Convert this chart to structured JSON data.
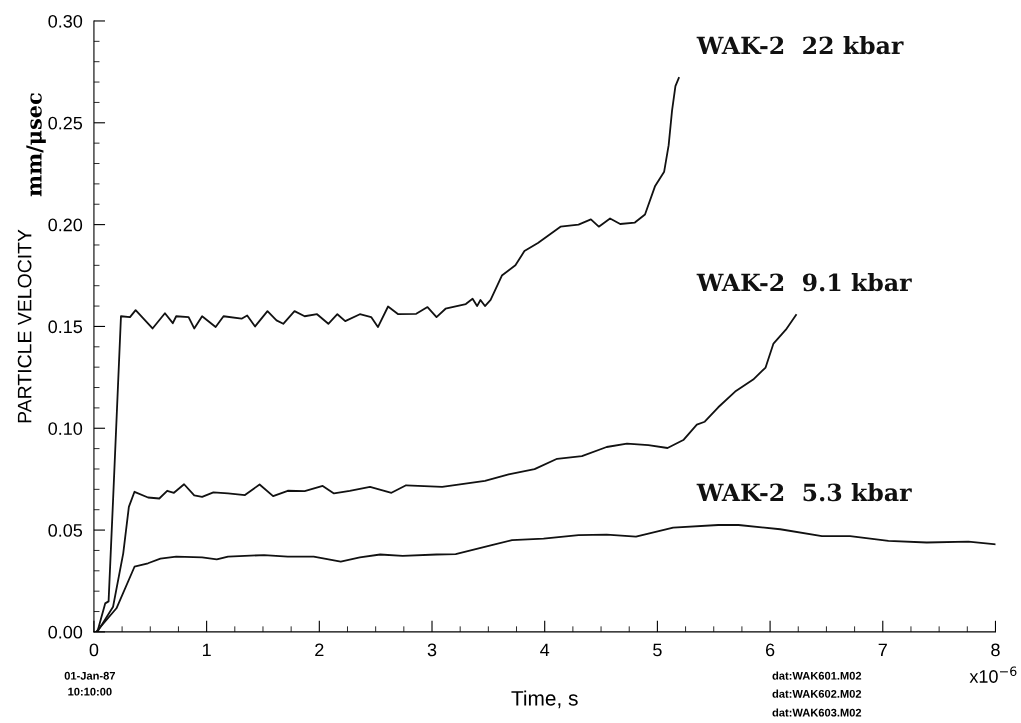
{
  "chart_data": {
    "type": "line",
    "xlabel": "Time, s",
    "ylabel": "PARTICLE VELOCITY",
    "xlim": [
      0,
      8
    ],
    "xticks": [
      0,
      1,
      2,
      3,
      4,
      5,
      6,
      7,
      8
    ],
    "ylim": [
      0,
      0.3
    ],
    "yticks": [
      {
        "value": 0,
        "label": "0.00"
      },
      {
        "value": 0.05,
        "label": "0.05"
      },
      {
        "value": 0.1,
        "label": "0.10"
      },
      {
        "value": 0.15,
        "label": "0.15"
      },
      {
        "value": 0.2,
        "label": "0.20"
      },
      {
        "value": 0.25,
        "label": "0.25"
      },
      {
        "value": 0.3,
        "label": "0.30"
      }
    ],
    "grid": false,
    "legend": false,
    "marker": "none",
    "line_style": "solid",
    "annotations": [
      "mm/μsec",
      "01-Jan-87",
      "10:10:00",
      "dat:WAK601.M02",
      "dat:WAK602.M02",
      "dat:WAK603.M02",
      "x10$^{−6}$"
    ],
    "series": [
      {
        "name": "WAK-2  22 kbar",
        "color": "#111111",
        "x": [
          0.03,
          0.1,
          0.13,
          0.17,
          0.24,
          0.32,
          0.37,
          0.52,
          0.63,
          0.7,
          0.73,
          0.84,
          0.89,
          0.96,
          1.08,
          1.15,
          1.31,
          1.36,
          1.43,
          1.54,
          1.62,
          1.68,
          1.78,
          1.87,
          1.98,
          2.08,
          2.16,
          2.23,
          2.36,
          2.46,
          2.52,
          2.61,
          2.7,
          2.86,
          2.96,
          3.04,
          3.12,
          3.3,
          3.36,
          3.4,
          3.43,
          3.47,
          3.52,
          3.62,
          3.74,
          3.82,
          3.94,
          4.14,
          4.3,
          4.41,
          4.48,
          4.58,
          4.67,
          4.8,
          4.89,
          4.98,
          5.06,
          5.1,
          5.13,
          5.16,
          5.19
        ],
        "values": [
          0.0,
          0.014,
          0.015,
          0.065,
          0.155,
          0.1546,
          0.158,
          0.149,
          0.1565,
          0.1516,
          0.155,
          0.1546,
          0.149,
          0.155,
          0.1497,
          0.155,
          0.1538,
          0.1554,
          0.15,
          0.1575,
          0.153,
          0.1513,
          0.1575,
          0.155,
          0.156,
          0.1513,
          0.156,
          0.1526,
          0.156,
          0.1546,
          0.1497,
          0.1598,
          0.156,
          0.1562,
          0.1595,
          0.1546,
          0.1587,
          0.161,
          0.1636,
          0.16,
          0.163,
          0.16,
          0.163,
          0.175,
          0.18,
          0.187,
          0.191,
          0.199,
          0.2,
          0.2026,
          0.199,
          0.203,
          0.2003,
          0.201,
          0.205,
          0.219,
          0.226,
          0.239,
          0.256,
          0.268,
          0.272
        ]
      },
      {
        "name": "WAK-2  9.1 kbar",
        "color": "#111111",
        "x": [
          0.03,
          0.17,
          0.26,
          0.31,
          0.36,
          0.48,
          0.58,
          0.65,
          0.71,
          0.8,
          0.89,
          0.96,
          1.06,
          1.19,
          1.34,
          1.47,
          1.59,
          1.72,
          1.87,
          2.03,
          2.13,
          2.27,
          2.45,
          2.64,
          2.77,
          3.09,
          3.47,
          3.68,
          3.91,
          4.11,
          4.33,
          4.55,
          4.73,
          4.92,
          5.09,
          5.23,
          5.35,
          5.42,
          5.54,
          5.69,
          5.85,
          5.96,
          6.03,
          6.14,
          6.23
        ],
        "values": [
          0.0,
          0.0124,
          0.0386,
          0.0614,
          0.0688,
          0.066,
          0.0655,
          0.0693,
          0.0683,
          0.0725,
          0.067,
          0.0663,
          0.0685,
          0.068,
          0.0672,
          0.0724,
          0.0667,
          0.0693,
          0.0691,
          0.0717,
          0.068,
          0.0693,
          0.0712,
          0.0683,
          0.072,
          0.0712,
          0.0742,
          0.0774,
          0.0799,
          0.085,
          0.0863,
          0.0908,
          0.0925,
          0.0917,
          0.0903,
          0.0942,
          0.1018,
          0.1032,
          0.1103,
          0.118,
          0.1239,
          0.1298,
          0.1416,
          0.1484,
          0.1556
        ]
      },
      {
        "name": "WAK-2  5.3 kbar",
        "color": "#111111",
        "x": [
          0.02,
          0.2,
          0.36,
          0.48,
          0.59,
          0.73,
          0.96,
          1.09,
          1.19,
          1.51,
          1.72,
          1.95,
          2.19,
          2.36,
          2.54,
          2.74,
          3.04,
          3.21,
          3.53,
          3.71,
          3.99,
          4.3,
          4.55,
          4.81,
          5.14,
          5.54,
          5.72,
          6.09,
          6.46,
          6.71,
          7.05,
          7.39,
          7.76,
          8.0
        ],
        "values": [
          0.0,
          0.0116,
          0.032,
          0.0337,
          0.036,
          0.037,
          0.0366,
          0.0356,
          0.037,
          0.0377,
          0.037,
          0.037,
          0.0345,
          0.0366,
          0.038,
          0.0373,
          0.038,
          0.0382,
          0.0426,
          0.0451,
          0.0458,
          0.0475,
          0.0478,
          0.0468,
          0.0512,
          0.0525,
          0.0525,
          0.0504,
          0.047,
          0.047,
          0.0447,
          0.0439,
          0.0443,
          0.043
        ]
      }
    ]
  }
}
